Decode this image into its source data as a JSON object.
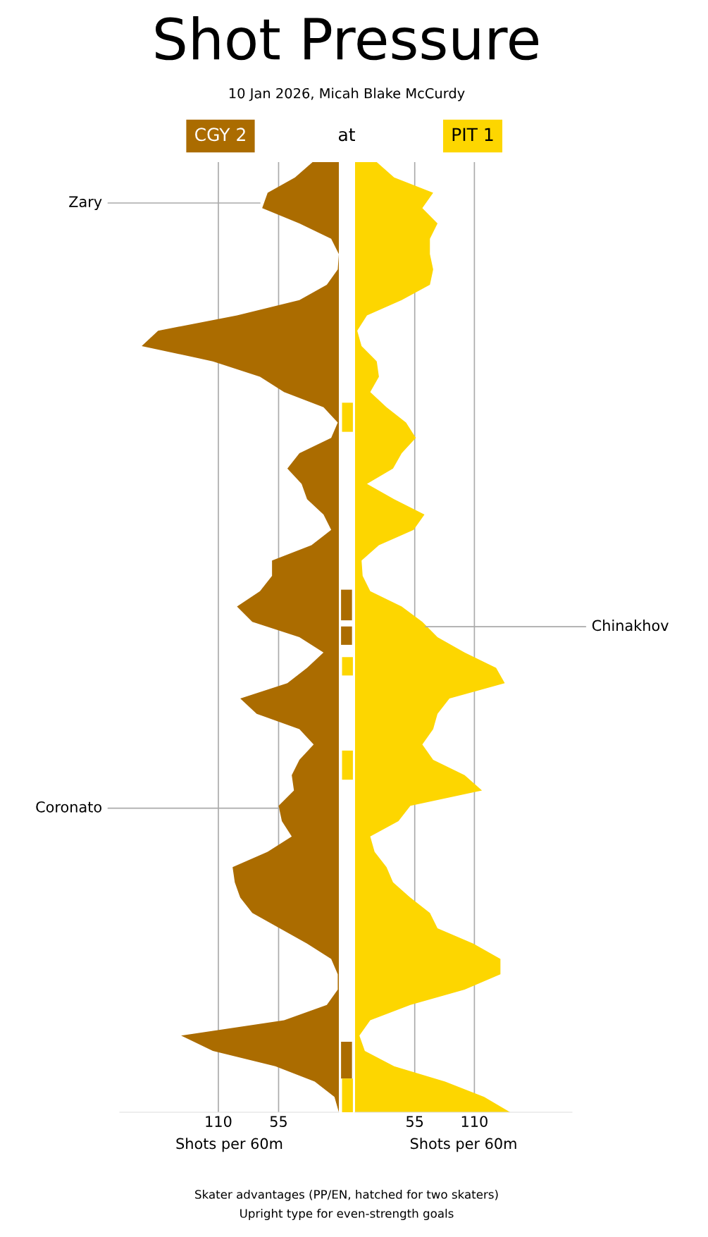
{
  "chart_data": [
    {
      "type": "other",
      "title": "Shot Pressure",
      "subtitle": "10 Jan 2026, Micah Blake McCurdy",
      "annotations": [
        "CGY 2",
        "at",
        "PIT 1",
        "Skater advantages (PP/EN, hatched for two skaters)",
        "Upright type for even-strength goals"
      ],
      "colors": [
        "#ab6c00",
        null,
        "#fdd600",
        null,
        null
      ]
    },
    {
      "type": "area",
      "orientation": "horizontal",
      "categories": [
        null,
        null,
        null,
        null,
        null,
        null,
        null,
        null,
        null,
        null,
        null,
        null,
        null,
        null,
        null,
        null,
        null,
        null,
        null,
        null,
        null,
        null,
        null,
        null,
        null,
        null,
        null,
        null,
        null,
        null,
        null,
        null,
        null,
        null,
        null,
        null,
        null,
        null,
        null,
        null,
        null,
        null,
        null,
        null,
        null,
        null,
        null,
        null,
        null,
        null,
        null,
        null,
        null,
        null,
        null,
        null,
        null,
        null,
        null,
        null,
        null,
        null,
        null
      ],
      "series": [
        {
          "color": "#ab6c00",
          "values": [
            24,
            40,
            65,
            70,
            36,
            7,
            0,
            1,
            11,
            36,
            93,
            165,
            180,
            115,
            72,
            50,
            14,
            1,
            7,
            36,
            47,
            34,
            29,
            14,
            7,
            25,
            61,
            61,
            72,
            93,
            79,
            36,
            14,
            29,
            47,
            90,
            75,
            36,
            23,
            36,
            43,
            41,
            55,
            52,
            43,
            65,
            97,
            95,
            90,
            79,
            54,
            29,
            7,
            1,
            1,
            11,
            50,
            144,
            115,
            58,
            22,
            4,
            0
          ]
        }
      ],
      "xlim": [
        200,
        0
      ],
      "xticks": [
        110,
        55
      ],
      "grid": "x",
      "xlabel": "Shots per 60m",
      "annotations": [
        "Zary",
        "Coronato"
      ]
    },
    {
      "type": "area",
      "orientation": "horizontal",
      "categories": [
        null,
        null,
        null,
        null,
        null,
        null,
        null,
        null,
        null,
        null,
        null,
        null,
        null,
        null,
        null,
        null,
        null,
        null,
        null,
        null,
        null,
        null,
        null,
        null,
        null,
        null,
        null,
        null,
        null,
        null,
        null,
        null,
        null,
        null,
        null,
        null,
        null,
        null,
        null,
        null,
        null,
        null,
        null,
        null,
        null,
        null,
        null,
        null,
        null,
        null,
        null,
        null,
        null,
        null,
        null,
        null,
        null,
        null,
        null,
        null,
        null,
        null,
        null
      ],
      "series": [
        {
          "color": "#fdd600",
          "values": [
            20,
            36,
            72,
            62,
            76,
            69,
            69,
            72,
            69,
            43,
            11,
            2,
            6,
            20,
            22,
            14,
            29,
            47,
            56,
            43,
            35,
            11,
            36,
            64,
            54,
            22,
            6,
            7,
            14,
            43,
            62,
            76,
            101,
            130,
            138,
            87,
            76,
            72,
            62,
            72,
            101,
            117,
            51,
            40,
            14,
            18,
            29,
            35,
            51,
            69,
            76,
            109,
            134,
            134,
            101,
            51,
            14,
            4,
            9,
            36,
            83,
            119,
            143
          ]
        }
      ],
      "xlim": [
        0,
        200
      ],
      "xticks": [
        55,
        110
      ],
      "grid": "x",
      "xlabel": "Shots per 60m",
      "annotations": [
        "Chinakhov"
      ]
    }
  ]
}
